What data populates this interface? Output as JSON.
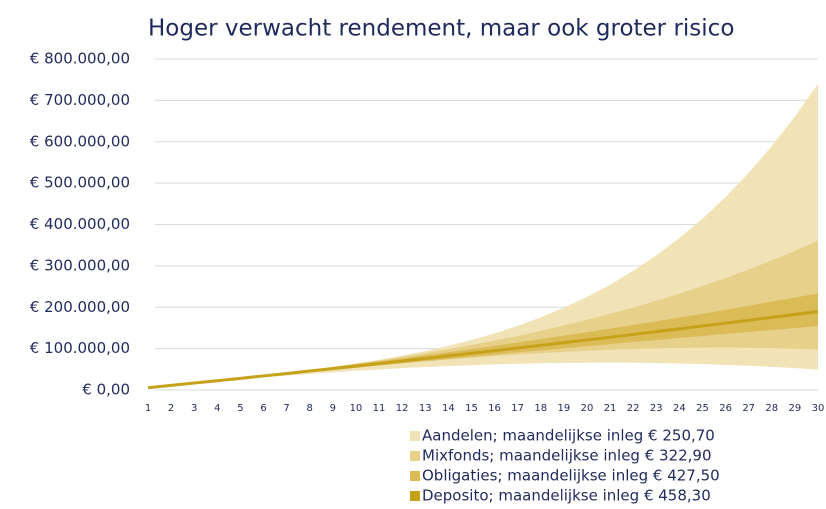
{
  "chart_data": {
    "type": "band",
    "title": "Hoger verwacht rendement, maar ook groter risico",
    "categories": [
      1,
      2,
      3,
      4,
      5,
      6,
      7,
      8,
      9,
      10,
      11,
      12,
      13,
      14,
      15,
      16,
      17,
      18,
      19,
      20,
      21,
      22,
      23,
      24,
      25,
      26,
      27,
      28,
      29,
      30
    ],
    "ylim": [
      0,
      800000
    ],
    "yticks": [
      {
        "value": 0,
        "label": "€ 0,00"
      },
      {
        "value": 100000,
        "label": "€ 100.000,00"
      },
      {
        "value": 200000,
        "label": "€ 200.000,00"
      },
      {
        "value": 300000,
        "label": "€ 300.000,00"
      },
      {
        "value": 400000,
        "label": "€ 400.000,00"
      },
      {
        "value": 500000,
        "label": "€ 500.000,00"
      },
      {
        "value": 600000,
        "label": "€ 600.000,00"
      },
      {
        "value": 700000,
        "label": "€ 700.000,00"
      },
      {
        "value": 800000,
        "label": "€ 800.000,00"
      }
    ],
    "grid": true,
    "series": [
      {
        "name": "Aandelen; maandelijkse inleg € 250,70",
        "color": "#f1e3b6",
        "high": [
          5500,
          11100,
          16800,
          22600,
          28600,
          34800,
          41300,
          48300,
          55700,
          64000,
          72900,
          83000,
          94200,
          106700,
          120900,
          136800,
          155100,
          175700,
          198900,
          225000,
          254500,
          287900,
          325300,
          367300,
          414000,
          466400,
          524700,
          589700,
          661000,
          740200
        ],
        "low": [
          5400,
          10800,
          16000,
          20900,
          25800,
          30400,
          34700,
          38900,
          42700,
          46400,
          49600,
          52800,
          55500,
          58000,
          60100,
          61900,
          63500,
          64700,
          65500,
          65900,
          66100,
          65800,
          65100,
          64100,
          62700,
          60800,
          58600,
          56000,
          52900,
          49300
        ]
      },
      {
        "name": "Mixfonds; maandelijkse inleg € 322,90",
        "color": "#e7d08a",
        "high": [
          5500,
          11100,
          17000,
          22800,
          28900,
          35200,
          41800,
          48700,
          55900,
          63600,
          71500,
          80100,
          89100,
          98600,
          108700,
          119300,
          130800,
          143000,
          155800,
          169400,
          183900,
          199300,
          215600,
          232900,
          251200,
          270700,
          291300,
          313300,
          336200,
          360600
        ],
        "low": [
          5500,
          11100,
          16700,
          22200,
          27800,
          33300,
          38700,
          44200,
          49400,
          54700,
          59600,
          64600,
          69200,
          73700,
          77900,
          81900,
          85700,
          89100,
          92200,
          94900,
          97200,
          99200,
          100700,
          101800,
          102400,
          102600,
          102200,
          101300,
          99700,
          97600
        ]
      },
      {
        "name": "Obligaties; maandelijkse inleg € 427,50",
        "color": "#dabb55",
        "high": [
          5500,
          11300,
          17200,
          23100,
          29300,
          35600,
          41900,
          48600,
          55300,
          62300,
          69200,
          76500,
          83800,
          91300,
          98900,
          106700,
          114800,
          123000,
          131300,
          139600,
          148200,
          157100,
          166000,
          175100,
          184400,
          193800,
          203500,
          213500,
          223400,
          233600
        ],
        "low": [
          5500,
          11000,
          16500,
          21800,
          27300,
          32700,
          38100,
          43500,
          48800,
          54200,
          59400,
          64800,
          70100,
          75200,
          80500,
          85600,
          90800,
          95900,
          101000,
          106000,
          111000,
          116000,
          120900,
          125800,
          130600,
          135500,
          140300,
          145100,
          149800,
          154500
        ]
      },
      {
        "name": "Deposito; maandelijkse inleg € 458,30",
        "color": "#c6a21a",
        "values": [
          5500,
          11100,
          16800,
          22400,
          28200,
          34000,
          39800,
          45800,
          51700,
          57800,
          63800,
          70000,
          76200,
          82400,
          88700,
          95000,
          101500,
          108000,
          114500,
          121000,
          127600,
          134300,
          141000,
          147800,
          154600,
          161500,
          168500,
          175600,
          182600,
          189800
        ]
      }
    ]
  }
}
